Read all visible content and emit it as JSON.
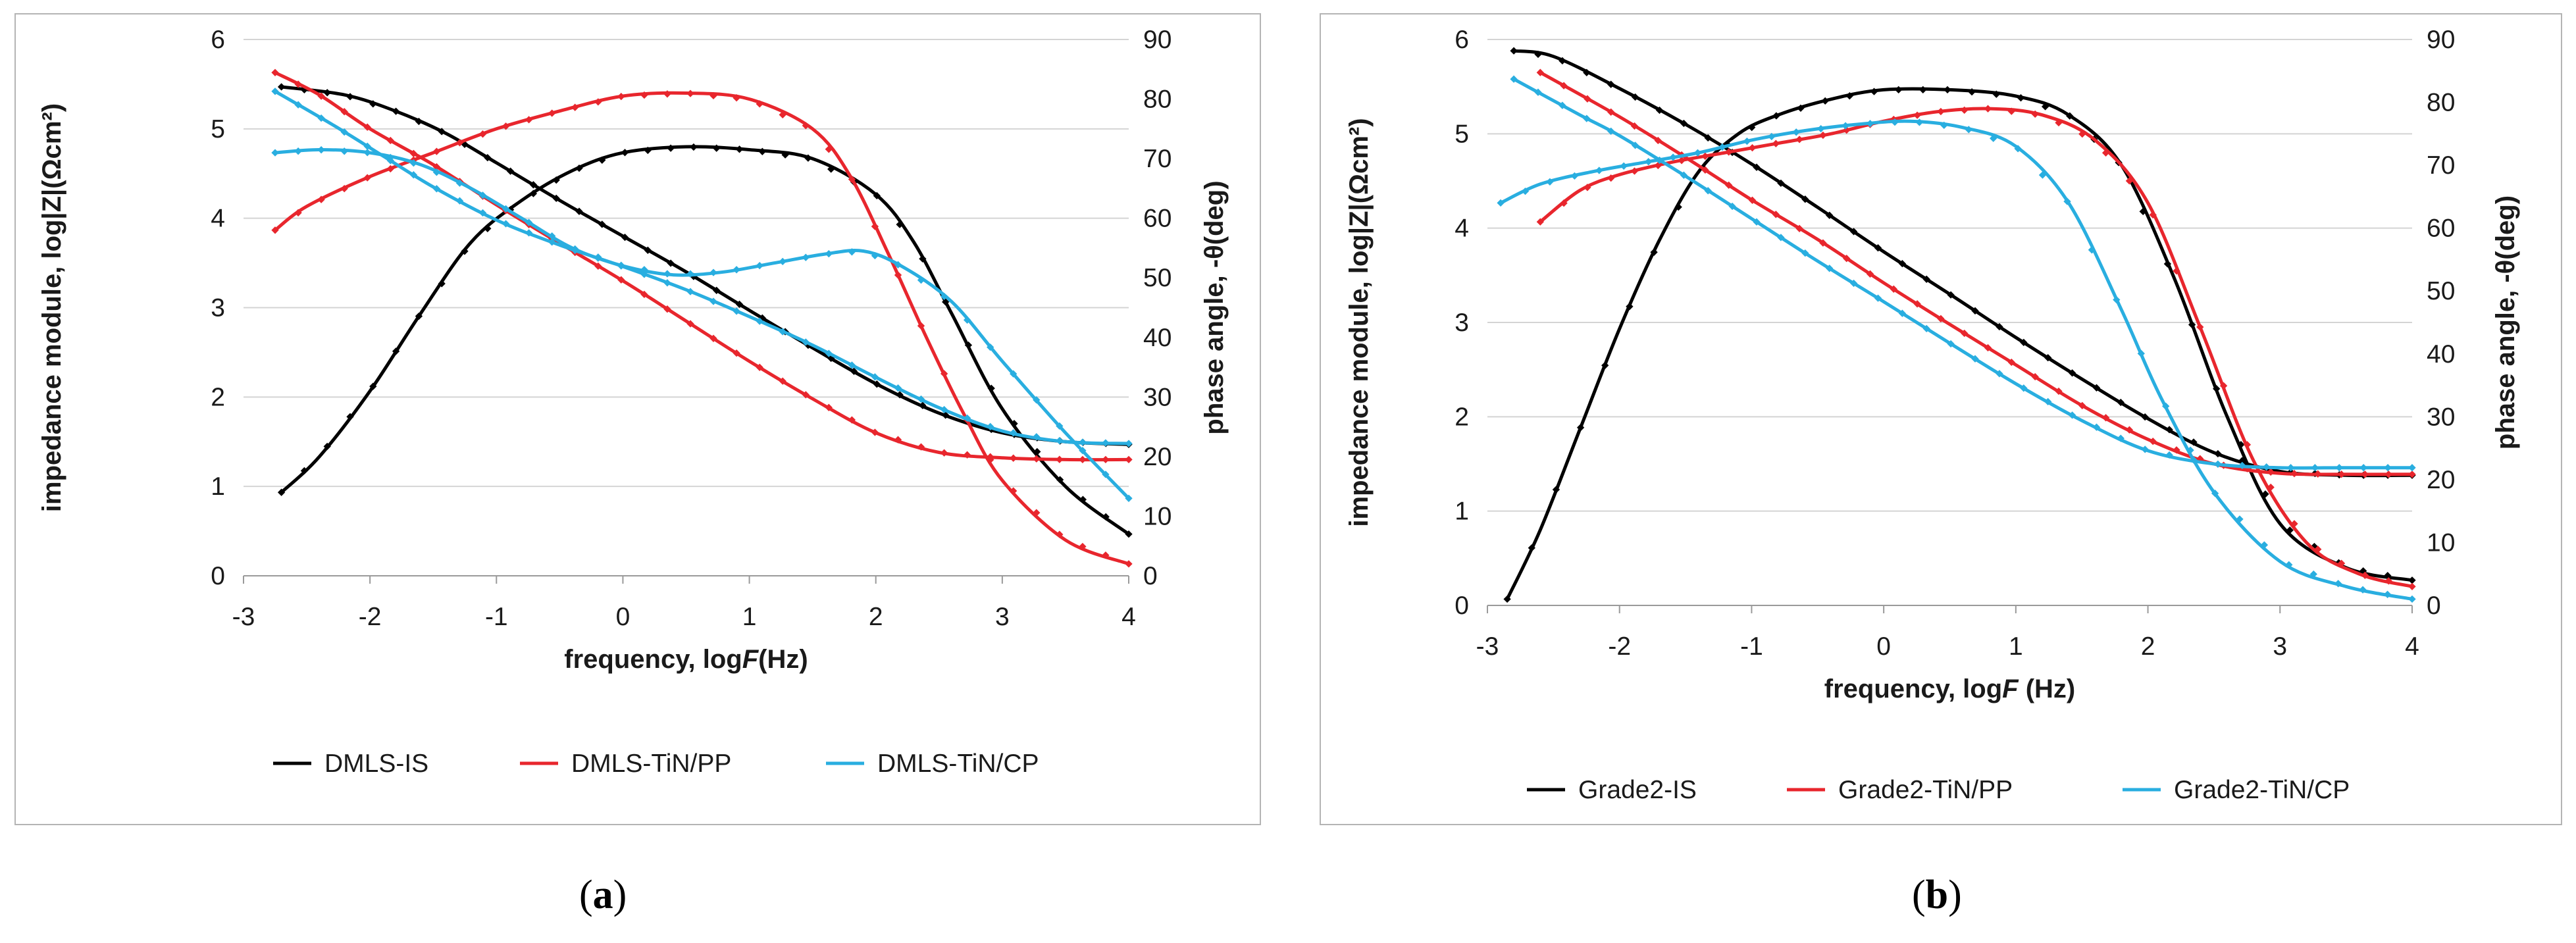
{
  "captions": {
    "a_open": "(",
    "a_letter": "a",
    "a_close": ")",
    "b_open": "(",
    "b_letter": "b",
    "b_close": ")"
  },
  "chart_data": [
    {
      "type": "line",
      "panel": "a",
      "xlabel_prefix": "frequency, log",
      "xlabel_italic": "F",
      "xlabel_suffix": "(Hz)",
      "ylabel_left": "impedance module, log|Z|(Ωcm²)",
      "ylabel_right": "phase angle, -θ(deg)",
      "xlim": [
        -3,
        4
      ],
      "ylim_left": [
        0,
        6
      ],
      "ylim_right": [
        0,
        90
      ],
      "x_ticks": [
        "-3",
        "-2",
        "-1",
        "0",
        "1",
        "2",
        "3",
        "4"
      ],
      "y_left_ticks": [
        "0",
        "1",
        "2",
        "3",
        "4",
        "5",
        "6"
      ],
      "y_right_ticks": [
        "0",
        "10",
        "20",
        "30",
        "40",
        "50",
        "60",
        "70",
        "80",
        "90"
      ],
      "grid": true,
      "legend": [
        {
          "label": "DMLS-IS",
          "color": "#000000"
        },
        {
          "label": "DMLS-TiN/PP",
          "color": "#e8262d"
        },
        {
          "label": "DMLS-TiN/CP",
          "color": "#29aee0"
        }
      ],
      "series": [
        {
          "name": "DMLS-IS",
          "quantity": "log|Z|",
          "axis": "left",
          "color": "#000000",
          "x": [
            -2.7,
            -2.2,
            -1.8,
            -1.4,
            -1,
            -0.5,
            0,
            0.5,
            1,
            1.5,
            2,
            2.5,
            3,
            3.5,
            4
          ],
          "values": [
            5.47,
            5.38,
            5.2,
            4.95,
            4.62,
            4.2,
            3.8,
            3.4,
            2.97,
            2.55,
            2.15,
            1.82,
            1.6,
            1.5,
            1.47
          ]
        },
        {
          "name": "DMLS-IS",
          "quantity": "phase",
          "axis": "right",
          "color": "#000000",
          "x": [
            -2.7,
            -2.4,
            -2,
            -1.6,
            -1.2,
            -0.8,
            -0.4,
            0,
            0.5,
            1,
            1.5,
            2,
            2.3,
            2.6,
            3,
            3.5,
            4
          ],
          "values": [
            14,
            20,
            31,
            44,
            56,
            63,
            68,
            71,
            72,
            71.5,
            70,
            64,
            56,
            44,
            28,
            15,
            7
          ]
        },
        {
          "name": "DMLS-TiN/PP",
          "quantity": "log|Z|",
          "axis": "left",
          "color": "#e8262d",
          "x": [
            -2.75,
            -2.4,
            -2,
            -1.5,
            -1,
            -0.5,
            0,
            0.5,
            1,
            1.5,
            2,
            2.5,
            3,
            3.5,
            4
          ],
          "values": [
            5.63,
            5.38,
            5.0,
            4.6,
            4.15,
            3.72,
            3.3,
            2.85,
            2.4,
            1.98,
            1.6,
            1.38,
            1.32,
            1.3,
            1.3
          ]
        },
        {
          "name": "DMLS-TiN/PP",
          "quantity": "phase",
          "axis": "right",
          "color": "#e8262d",
          "x": [
            -2.75,
            -2.5,
            -2,
            -1.5,
            -1,
            -0.5,
            0,
            0.5,
            1,
            1.5,
            1.8,
            2.1,
            2.4,
            2.7,
            3,
            3.5,
            4
          ],
          "values": [
            58,
            62,
            67,
            71,
            75,
            78,
            80.5,
            81,
            80,
            75,
            67,
            54,
            40,
            27,
            16,
            6,
            2
          ]
        },
        {
          "name": "DMLS-TiN/CP",
          "quantity": "log|Z|",
          "axis": "left",
          "color": "#29aee0",
          "x": [
            -2.75,
            -2.3,
            -1.9,
            -1.5,
            -1,
            -0.5,
            0,
            0.5,
            1,
            1.5,
            2,
            2.5,
            3,
            3.5,
            4
          ],
          "values": [
            5.42,
            5.05,
            4.7,
            4.35,
            3.98,
            3.7,
            3.46,
            3.2,
            2.9,
            2.58,
            2.22,
            1.88,
            1.62,
            1.5,
            1.48
          ]
        },
        {
          "name": "DMLS-TiN/CP",
          "quantity": "phase",
          "axis": "right",
          "color": "#29aee0",
          "x": [
            -2.75,
            -2.4,
            -2,
            -1.6,
            -1.2,
            -0.8,
            -0.4,
            0,
            0.4,
            0.8,
            1.2,
            1.6,
            1.9,
            2.2,
            2.6,
            3,
            3.5,
            4
          ],
          "values": [
            71,
            71.5,
            71,
            69,
            65,
            60,
            55,
            52,
            50.5,
            51,
            52.5,
            54,
            54.5,
            52,
            46,
            36,
            24,
            13
          ]
        }
      ]
    },
    {
      "type": "line",
      "panel": "b",
      "xlabel_prefix": "frequency, log",
      "xlabel_italic": "F",
      "xlabel_suffix": " (Hz)",
      "ylabel_left": "impedance module, log|Z|(Ωcm²)",
      "ylabel_right": "phase angle, -θ(deg)",
      "xlim": [
        -3,
        4
      ],
      "ylim_left": [
        0,
        6
      ],
      "ylim_right": [
        0,
        90
      ],
      "x_ticks": [
        "-3",
        "-2",
        "-1",
        "0",
        "1",
        "2",
        "3",
        "4"
      ],
      "y_left_ticks": [
        "0",
        "1",
        "2",
        "3",
        "4",
        "5",
        "6"
      ],
      "y_right_ticks": [
        "0",
        "10",
        "20",
        "30",
        "40",
        "50",
        "60",
        "70",
        "80",
        "90"
      ],
      "grid": true,
      "legend": [
        {
          "label": "Grade2-IS",
          "color": "#000000"
        },
        {
          "label": "Grade2-TiN/PP",
          "color": "#e8262d"
        },
        {
          "label": "Grade2-TiN/CP",
          "color": "#29aee0"
        }
      ],
      "series": [
        {
          "name": "Grade2-IS",
          "quantity": "log|Z|",
          "axis": "left",
          "color": "#000000",
          "x": [
            -2.8,
            -2.5,
            -2,
            -1.5,
            -1,
            -0.5,
            0,
            0.5,
            1,
            1.5,
            2,
            2.5,
            3,
            3.5,
            4
          ],
          "values": [
            5.88,
            5.82,
            5.48,
            5.1,
            4.68,
            4.22,
            3.75,
            3.3,
            2.84,
            2.4,
            1.98,
            1.62,
            1.42,
            1.38,
            1.38
          ]
        },
        {
          "name": "Grade2-IS",
          "quantity": "phase",
          "axis": "right",
          "color": "#000000",
          "x": [
            -2.85,
            -2.6,
            -2.3,
            -2,
            -1.7,
            -1.4,
            -1.1,
            -0.8,
            -0.4,
            0,
            0.5,
            1,
            1.4,
            1.8,
            2.2,
            2.6,
            3,
            3.5,
            4
          ],
          "values": [
            1,
            12,
            28,
            44,
            58,
            69,
            75,
            78,
            80.5,
            82,
            82,
            81,
            78,
            70,
            52,
            30,
            13,
            6,
            4
          ]
        },
        {
          "name": "Grade2-TiN/PP",
          "quantity": "log|Z|",
          "axis": "left",
          "color": "#e8262d",
          "x": [
            -2.6,
            -2,
            -1.5,
            -1,
            -0.5,
            0,
            0.5,
            1,
            1.5,
            2,
            2.5,
            3,
            3.5,
            4
          ],
          "values": [
            5.65,
            5.18,
            4.75,
            4.3,
            3.88,
            3.42,
            2.98,
            2.55,
            2.12,
            1.76,
            1.5,
            1.4,
            1.39,
            1.39
          ]
        },
        {
          "name": "Grade2-TiN/PP",
          "quantity": "phase",
          "axis": "right",
          "color": "#e8262d",
          "x": [
            -2.6,
            -2.3,
            -2,
            -1.6,
            -1.2,
            -0.8,
            -0.4,
            0,
            0.4,
            0.8,
            1.2,
            1.6,
            2,
            2.4,
            2.8,
            3.2,
            3.6,
            4
          ],
          "values": [
            61,
            66,
            68.5,
            70.5,
            72,
            73.5,
            75,
            77,
            78.5,
            79,
            78,
            74,
            64,
            44,
            23,
            10,
            5,
            3
          ]
        },
        {
          "name": "Grade2-TiN/CP",
          "quantity": "log|Z|",
          "axis": "left",
          "color": "#29aee0",
          "x": [
            -2.8,
            -2.3,
            -2,
            -1.5,
            -1,
            -0.5,
            0,
            0.5,
            1,
            1.5,
            2,
            2.5,
            3,
            3.5,
            4
          ],
          "values": [
            5.58,
            5.2,
            4.98,
            4.55,
            4.1,
            3.65,
            3.22,
            2.78,
            2.35,
            1.96,
            1.64,
            1.5,
            1.46,
            1.46,
            1.46
          ]
        },
        {
          "name": "Grade2-TiN/CP",
          "quantity": "phase",
          "axis": "right",
          "color": "#29aee0",
          "x": [
            -2.9,
            -2.6,
            -2.2,
            -1.8,
            -1.4,
            -1,
            -0.6,
            -0.2,
            0.2,
            0.6,
            1,
            1.4,
            1.8,
            2.1,
            2.5,
            3,
            3.5,
            4
          ],
          "values": [
            64,
            67,
            69,
            70.5,
            72,
            74,
            75.5,
            76.5,
            77,
            76,
            73,
            64,
            47,
            33,
            18,
            7,
            3,
            1
          ]
        }
      ]
    }
  ]
}
